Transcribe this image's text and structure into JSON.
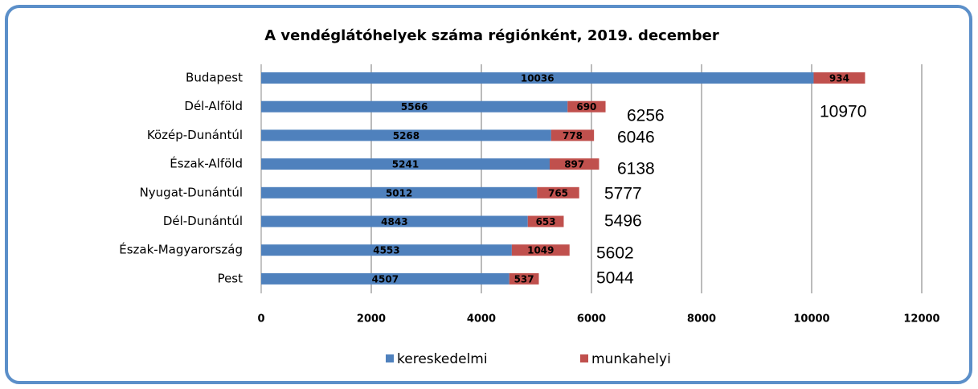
{
  "chart_data": {
    "type": "stacked-bar-horizontal",
    "title": "A vendéglátóhelyek száma régiónként, 2019. december",
    "categories": [
      "Budapest",
      "Dél-Alföld",
      "Közép-Dunántúl",
      "Észak-Alföld",
      "Nyugat-Dunántúl",
      "Dél-Dunántúl",
      "Észak-Magyarország",
      "Pest"
    ],
    "series": [
      {
        "name": "kereskedelmi",
        "color": "#4f81bd",
        "values": [
          10036,
          5566,
          5268,
          5241,
          5012,
          4843,
          4553,
          4507
        ]
      },
      {
        "name": "munkahelyi",
        "color": "#c0504d",
        "values": [
          934,
          690,
          778,
          897,
          765,
          653,
          1049,
          537
        ]
      }
    ],
    "total_labels": [
      10970,
      6256,
      6046,
      6138,
      5777,
      5496,
      5602,
      5044
    ],
    "xlim": [
      0,
      12000
    ],
    "xticks": [
      0,
      2000,
      4000,
      6000,
      8000,
      10000,
      12000
    ],
    "grid": true,
    "legend": "bottom"
  }
}
